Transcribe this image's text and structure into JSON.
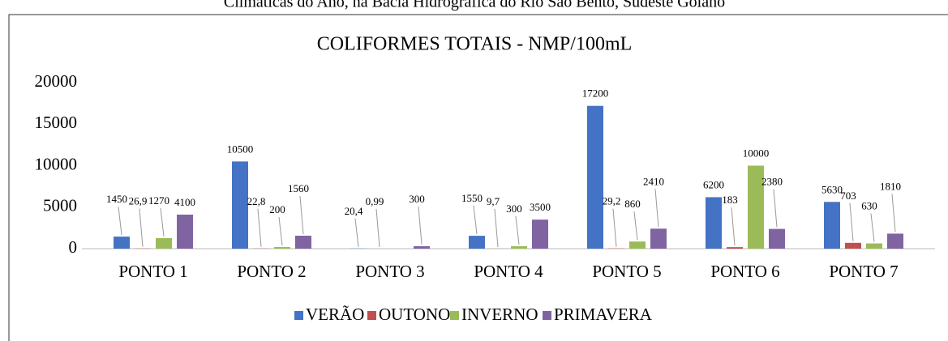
{
  "caption": "Climáticas do Ano, na Bacia Hidrográfica do Rio São Bento, Sudeste Goiano",
  "chart_data": {
    "type": "bar",
    "title": "COLIFORMES TOTAIS - NMP/100mL",
    "categories": [
      "PONTO 1",
      "PONTO 2",
      "PONTO 3",
      "PONTO 4",
      "PONTO 5",
      "PONTO 6",
      "PONTO 7"
    ],
    "series": [
      {
        "name": "VERÃO",
        "color": "#4472c4",
        "values": [
          1450,
          10500,
          20.4,
          1550,
          17200,
          6200,
          5630
        ],
        "value_labels": [
          "1450",
          "10500",
          "20,4",
          "1550",
          "17200",
          "6200",
          "5630"
        ]
      },
      {
        "name": "OUTONO",
        "color": "#c0504d",
        "values": [
          26.9,
          22.8,
          0.99,
          9.7,
          29.2,
          183,
          703
        ],
        "value_labels": [
          "26,9",
          "22,8",
          "0,99",
          "9,7",
          "29,2",
          "183",
          "703"
        ]
      },
      {
        "name": "INVERNO",
        "color": "#9bbb59",
        "values": [
          1270,
          200,
          null,
          300,
          860,
          10000,
          630
        ],
        "value_labels": [
          "1270",
          "200",
          null,
          "300",
          "860",
          "10000",
          "630"
        ]
      },
      {
        "name": "PRIMAVERA",
        "color": "#8064a2",
        "values": [
          4100,
          1560,
          300,
          3500,
          2410,
          2380,
          1810
        ],
        "value_labels": [
          "4100",
          "1560",
          "300",
          "3500",
          "2410",
          "2380",
          "1810"
        ]
      }
    ],
    "ylim": [
      0,
      20000
    ],
    "yticks": [
      0,
      5000,
      10000,
      15000,
      20000
    ],
    "grid": false,
    "legend": "bottom"
  }
}
